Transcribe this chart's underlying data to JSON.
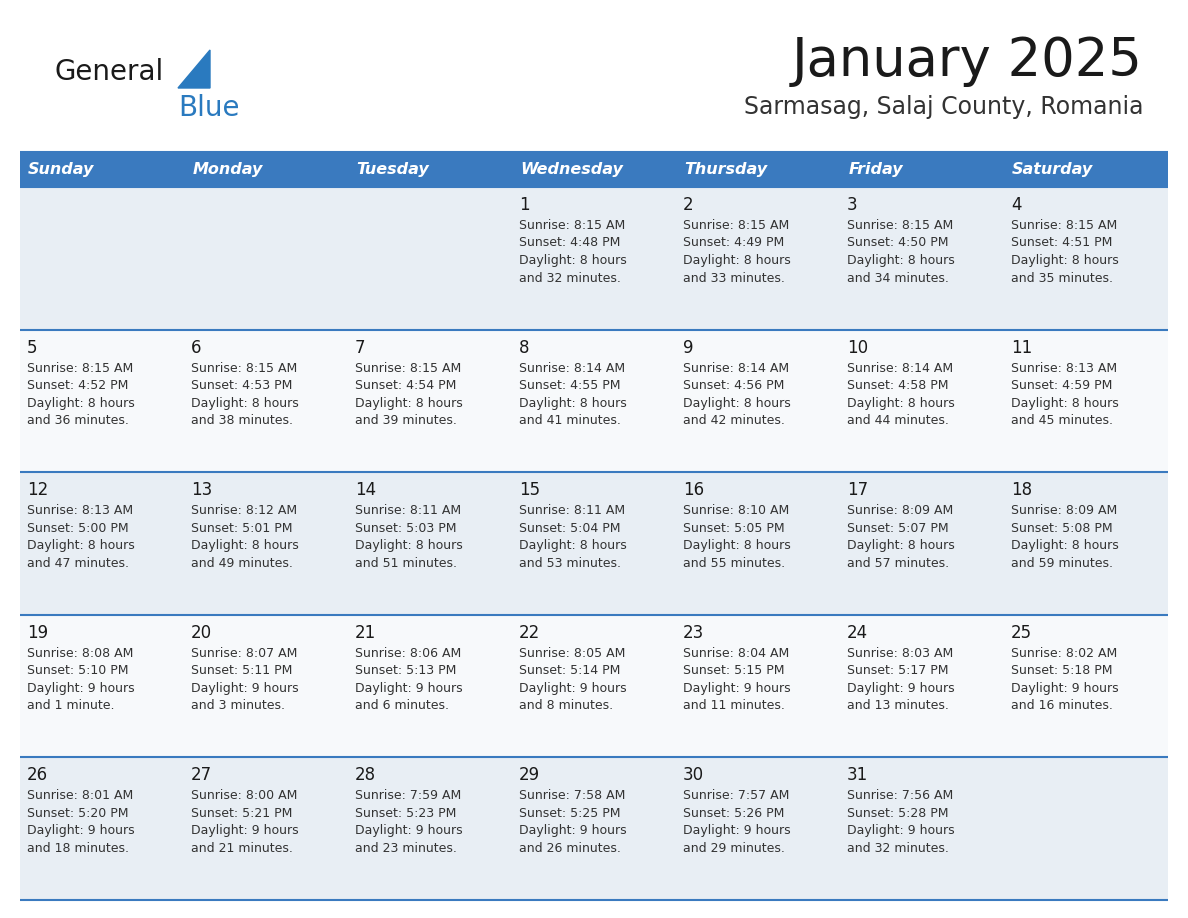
{
  "title": "January 2025",
  "subtitle": "Sarmasag, Salaj County, Romania",
  "days_of_week": [
    "Sunday",
    "Monday",
    "Tuesday",
    "Wednesday",
    "Thursday",
    "Friday",
    "Saturday"
  ],
  "header_bg": "#3a7abf",
  "header_text": "#ffffff",
  "row_bg_odd": "#e8eef4",
  "row_bg_even": "#f7f9fb",
  "divider_color": "#3a7abf",
  "title_color": "#1a1a1a",
  "subtitle_color": "#333333",
  "day_num_color": "#1a1a1a",
  "cell_text_color": "#333333",
  "logo_general_color": "#1a1a1a",
  "logo_blue_color": "#2a7abf",
  "logo_triangle_color": "#2a7abf",
  "calendar": [
    [
      {
        "day": "",
        "info": ""
      },
      {
        "day": "",
        "info": ""
      },
      {
        "day": "",
        "info": ""
      },
      {
        "day": "1",
        "info": "Sunrise: 8:15 AM\nSunset: 4:48 PM\nDaylight: 8 hours\nand 32 minutes."
      },
      {
        "day": "2",
        "info": "Sunrise: 8:15 AM\nSunset: 4:49 PM\nDaylight: 8 hours\nand 33 minutes."
      },
      {
        "day": "3",
        "info": "Sunrise: 8:15 AM\nSunset: 4:50 PM\nDaylight: 8 hours\nand 34 minutes."
      },
      {
        "day": "4",
        "info": "Sunrise: 8:15 AM\nSunset: 4:51 PM\nDaylight: 8 hours\nand 35 minutes."
      }
    ],
    [
      {
        "day": "5",
        "info": "Sunrise: 8:15 AM\nSunset: 4:52 PM\nDaylight: 8 hours\nand 36 minutes."
      },
      {
        "day": "6",
        "info": "Sunrise: 8:15 AM\nSunset: 4:53 PM\nDaylight: 8 hours\nand 38 minutes."
      },
      {
        "day": "7",
        "info": "Sunrise: 8:15 AM\nSunset: 4:54 PM\nDaylight: 8 hours\nand 39 minutes."
      },
      {
        "day": "8",
        "info": "Sunrise: 8:14 AM\nSunset: 4:55 PM\nDaylight: 8 hours\nand 41 minutes."
      },
      {
        "day": "9",
        "info": "Sunrise: 8:14 AM\nSunset: 4:56 PM\nDaylight: 8 hours\nand 42 minutes."
      },
      {
        "day": "10",
        "info": "Sunrise: 8:14 AM\nSunset: 4:58 PM\nDaylight: 8 hours\nand 44 minutes."
      },
      {
        "day": "11",
        "info": "Sunrise: 8:13 AM\nSunset: 4:59 PM\nDaylight: 8 hours\nand 45 minutes."
      }
    ],
    [
      {
        "day": "12",
        "info": "Sunrise: 8:13 AM\nSunset: 5:00 PM\nDaylight: 8 hours\nand 47 minutes."
      },
      {
        "day": "13",
        "info": "Sunrise: 8:12 AM\nSunset: 5:01 PM\nDaylight: 8 hours\nand 49 minutes."
      },
      {
        "day": "14",
        "info": "Sunrise: 8:11 AM\nSunset: 5:03 PM\nDaylight: 8 hours\nand 51 minutes."
      },
      {
        "day": "15",
        "info": "Sunrise: 8:11 AM\nSunset: 5:04 PM\nDaylight: 8 hours\nand 53 minutes."
      },
      {
        "day": "16",
        "info": "Sunrise: 8:10 AM\nSunset: 5:05 PM\nDaylight: 8 hours\nand 55 minutes."
      },
      {
        "day": "17",
        "info": "Sunrise: 8:09 AM\nSunset: 5:07 PM\nDaylight: 8 hours\nand 57 minutes."
      },
      {
        "day": "18",
        "info": "Sunrise: 8:09 AM\nSunset: 5:08 PM\nDaylight: 8 hours\nand 59 minutes."
      }
    ],
    [
      {
        "day": "19",
        "info": "Sunrise: 8:08 AM\nSunset: 5:10 PM\nDaylight: 9 hours\nand 1 minute."
      },
      {
        "day": "20",
        "info": "Sunrise: 8:07 AM\nSunset: 5:11 PM\nDaylight: 9 hours\nand 3 minutes."
      },
      {
        "day": "21",
        "info": "Sunrise: 8:06 AM\nSunset: 5:13 PM\nDaylight: 9 hours\nand 6 minutes."
      },
      {
        "day": "22",
        "info": "Sunrise: 8:05 AM\nSunset: 5:14 PM\nDaylight: 9 hours\nand 8 minutes."
      },
      {
        "day": "23",
        "info": "Sunrise: 8:04 AM\nSunset: 5:15 PM\nDaylight: 9 hours\nand 11 minutes."
      },
      {
        "day": "24",
        "info": "Sunrise: 8:03 AM\nSunset: 5:17 PM\nDaylight: 9 hours\nand 13 minutes."
      },
      {
        "day": "25",
        "info": "Sunrise: 8:02 AM\nSunset: 5:18 PM\nDaylight: 9 hours\nand 16 minutes."
      }
    ],
    [
      {
        "day": "26",
        "info": "Sunrise: 8:01 AM\nSunset: 5:20 PM\nDaylight: 9 hours\nand 18 minutes."
      },
      {
        "day": "27",
        "info": "Sunrise: 8:00 AM\nSunset: 5:21 PM\nDaylight: 9 hours\nand 21 minutes."
      },
      {
        "day": "28",
        "info": "Sunrise: 7:59 AM\nSunset: 5:23 PM\nDaylight: 9 hours\nand 23 minutes."
      },
      {
        "day": "29",
        "info": "Sunrise: 7:58 AM\nSunset: 5:25 PM\nDaylight: 9 hours\nand 26 minutes."
      },
      {
        "day": "30",
        "info": "Sunrise: 7:57 AM\nSunset: 5:26 PM\nDaylight: 9 hours\nand 29 minutes."
      },
      {
        "day": "31",
        "info": "Sunrise: 7:56 AM\nSunset: 5:28 PM\nDaylight: 9 hours\nand 32 minutes."
      },
      {
        "day": "",
        "info": ""
      }
    ]
  ]
}
